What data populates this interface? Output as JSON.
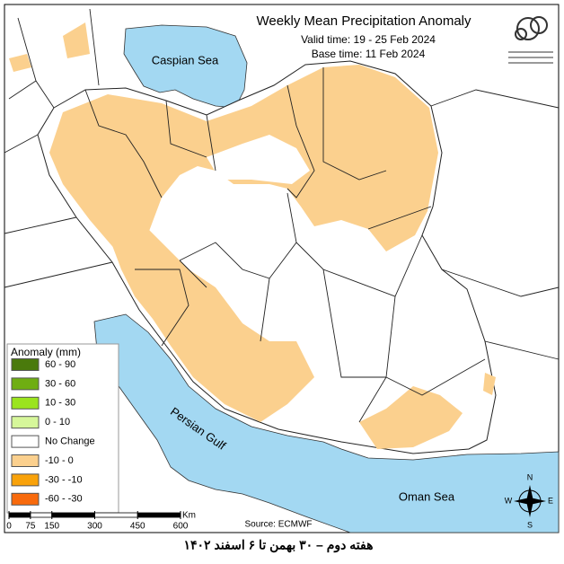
{
  "title": "Weekly Mean Precipitation Anomaly",
  "valid_time": "Valid time:  19 - 25 Feb 2024",
  "base_time": "Base time: 11 Feb 2024",
  "water_labels": [
    "Caspian Sea",
    "Persian Gulf",
    "Oman Sea"
  ],
  "legend": {
    "title": "Anomaly (mm)",
    "items": [
      {
        "label": "60 - 90",
        "color": "#4a7a0c"
      },
      {
        "label": "30 - 60",
        "color": "#6fae12"
      },
      {
        "label": "10 - 30",
        "color": "#9be41e"
      },
      {
        "label": "0 - 10",
        "color": "#d6f79a"
      },
      {
        "label": "No Change",
        "color": "#ffffff"
      },
      {
        "label": "-10 - 0",
        "color": "#fbd08e"
      },
      {
        "label": "-30 - -10",
        "color": "#f9a20a"
      },
      {
        "label": "-60 - -30",
        "color": "#f86a0c"
      }
    ]
  },
  "scale_bar": {
    "ticks": [
      0,
      75,
      150,
      300,
      450,
      600
    ],
    "unit": "Km"
  },
  "source": "Source: ECMWF",
  "compass": {
    "north": "N",
    "east": "E",
    "south": "S",
    "west": "W"
  },
  "footer": "هفته دوم – ۳۰ بهمن تا ۶ اسفند ۱۴۰۲"
}
